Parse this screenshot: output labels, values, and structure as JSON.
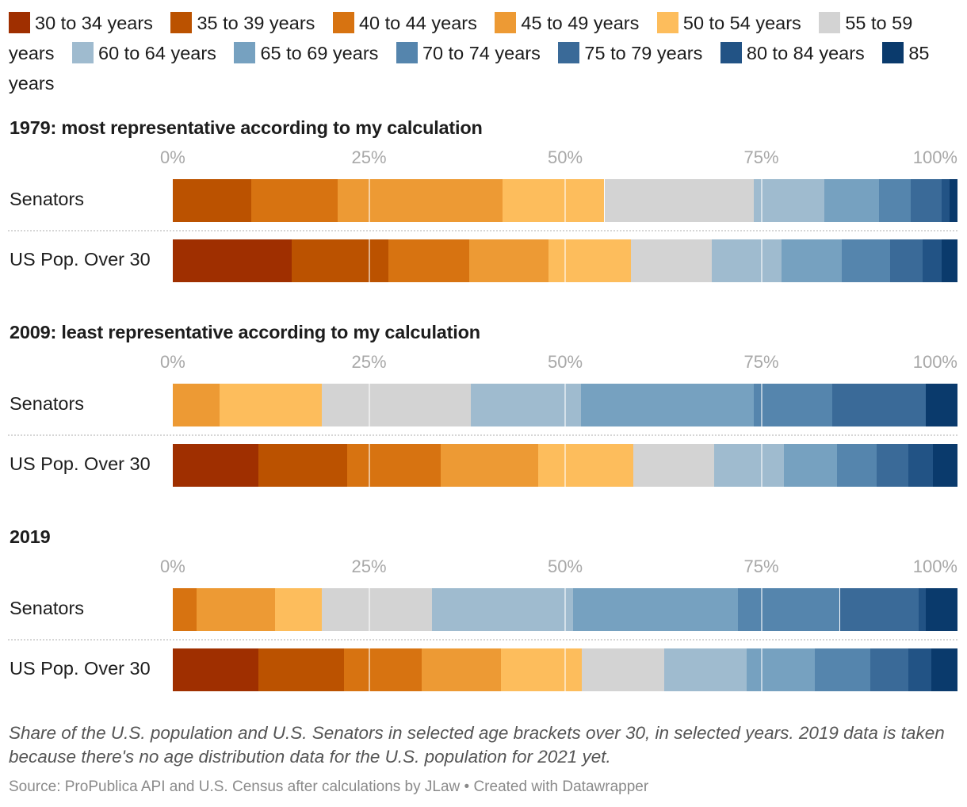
{
  "chart_data": {
    "type": "bar",
    "orientation": "horizontal",
    "stacked": true,
    "unit": "%",
    "xlim": [
      0,
      100
    ],
    "ticks": [
      "0%",
      "25%",
      "50%",
      "75%",
      "100%"
    ],
    "tick_values": [
      0,
      25,
      50,
      75,
      100
    ],
    "legend_position": "top",
    "legend": [
      {
        "label": "30 to 34 years",
        "color": "#9f2f00"
      },
      {
        "label": "35 to 39 years",
        "color": "#bb5200"
      },
      {
        "label": "40 to 44 years",
        "color": "#d77311"
      },
      {
        "label": "45 to 49 years",
        "color": "#ed9a34"
      },
      {
        "label": "50 to 54 years",
        "color": "#fdbd5c"
      },
      {
        "label": "55 to 59 years",
        "color": "#d3d3d3"
      },
      {
        "label": "60 to 64 years",
        "color": "#9fbbcf"
      },
      {
        "label": "65 to 69 years",
        "color": "#76a1c0"
      },
      {
        "label": "70 to 74 years",
        "color": "#5585ad"
      },
      {
        "label": "75 to 79 years",
        "color": "#3a6a98"
      },
      {
        "label": "80 to 84 years",
        "color": "#225385"
      },
      {
        "label": "85 years",
        "color": "#0a3a6c"
      }
    ],
    "panels": [
      {
        "title": "1979: most representative according to my calculation",
        "rows": [
          {
            "label": "Senators",
            "values": [
              0,
              10,
              11,
              21,
              13,
              19,
              9,
              7,
              4,
              4,
              1,
              1
            ]
          },
          {
            "label": "US Pop. Over 30",
            "values": [
              15.2,
              12.3,
              10.3,
              10.1,
              10.5,
              10.3,
              8.9,
              7.7,
              6.1,
              4.2,
              2.4,
              2.0
            ]
          }
        ]
      },
      {
        "title": "2009: least representative according to my calculation",
        "rows": [
          {
            "label": "Senators",
            "values": [
              0,
              0,
              0,
              6,
              13,
              19,
              14,
              22,
              10,
              12,
              0,
              4
            ]
          },
          {
            "label": "US Pop. Over 30",
            "values": [
              10.9,
              11.3,
              11.9,
              12.5,
              12.1,
              10.3,
              8.9,
              6.7,
              5.1,
              4.0,
              3.2,
              3.1
            ]
          }
        ]
      },
      {
        "title": "2019",
        "rows": [
          {
            "label": "Senators",
            "values": [
              0,
              0,
              3,
              10,
              6,
              14,
              18,
              21,
              13,
              10,
              1,
              4
            ]
          },
          {
            "label": "US Pop. Over 30",
            "values": [
              10.9,
              10.9,
              9.9,
              10.1,
              10.3,
              10.5,
              10.5,
              8.7,
              7.1,
              4.8,
              3.0,
              3.3
            ]
          }
        ]
      }
    ],
    "notes": "Share of the U.S. population and U.S. Senators in selected age brackets over 30, in selected years. 2019 data is taken because there's no age distribution data for the U.S. population for 2021 yet.",
    "source": "Source: ProPublica API and U.S. Census after calculations by JLaw • Created with Datawrapper"
  }
}
